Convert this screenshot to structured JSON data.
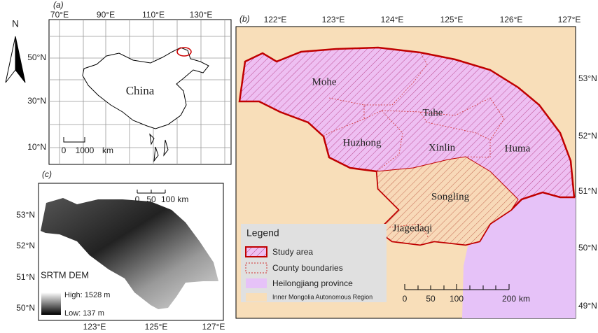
{
  "north_arrow": "N",
  "panel_a": {
    "label": "(a)",
    "lon_labels": [
      "70°E",
      "90°E",
      "110°E",
      "130°E"
    ],
    "lat_labels": [
      "50°N",
      "30°N",
      "10°N"
    ],
    "country": "China",
    "scale_labels": [
      "0",
      "1000",
      "km"
    ]
  },
  "panel_b": {
    "label": "(b)",
    "lon_labels": [
      "122°E",
      "123°E",
      "124°E",
      "125°E",
      "126°E",
      "127°E"
    ],
    "lat_labels": [
      "53°N",
      "52°N",
      "51°N",
      "50°N",
      "49°N"
    ],
    "counties": [
      "Mohe",
      "Tahe",
      "Huzhong",
      "Xinlin",
      "Huma",
      "Songling",
      "Jiagedaqi"
    ],
    "legend": {
      "title": "Legend",
      "items": [
        "Study area",
        "County boundaries",
        "Heilongjiang province",
        "Inner Mongolia Autonomous Region"
      ]
    },
    "scale_labels": [
      "0",
      "50",
      "100",
      "200",
      "km"
    ]
  },
  "panel_c": {
    "label": "(c)",
    "lat_labels": [
      "53°N",
      "52°N",
      "51°N",
      "50°N"
    ],
    "lon_labels": [
      "123°E",
      "125°E",
      "127°E"
    ],
    "scale_labels": [
      "0",
      "50",
      "100 km"
    ],
    "legend_title": "SRTM DEM",
    "high": "High: 1528 m",
    "low": "Low: 137 m"
  }
}
